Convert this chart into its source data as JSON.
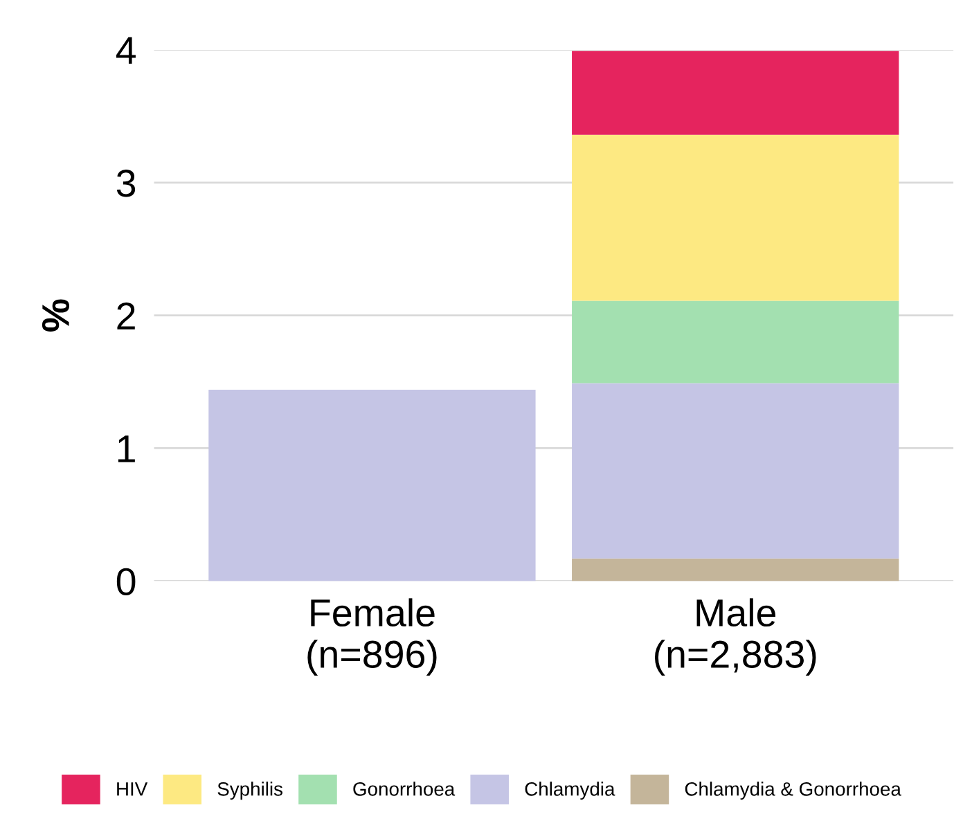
{
  "chart_data": {
    "type": "bar",
    "stacked": true,
    "ylabel": "%",
    "categories": [
      "Female\n(n=896)",
      "Male\n(n=2,883)"
    ],
    "series": [
      {
        "name": "Chlamydia & Gonorrhoea",
        "color": "#c4b59a",
        "values": [
          0,
          0.17
        ]
      },
      {
        "name": "Chlamydia",
        "color": "#c5c5e5",
        "values": [
          1.44,
          1.32
        ]
      },
      {
        "name": "Gonorrhoea",
        "color": "#a3e0b0",
        "values": [
          0,
          0.62
        ]
      },
      {
        "name": "Syphilis",
        "color": "#fde982",
        "values": [
          0,
          1.25
        ]
      },
      {
        "name": "HIV",
        "color": "#e5245e",
        "values": [
          0,
          0.63
        ]
      }
    ],
    "ylim": [
      0,
      4
    ],
    "yticks": [
      0,
      1,
      2,
      3,
      4
    ],
    "grid": "y",
    "legend": "bottom"
  }
}
